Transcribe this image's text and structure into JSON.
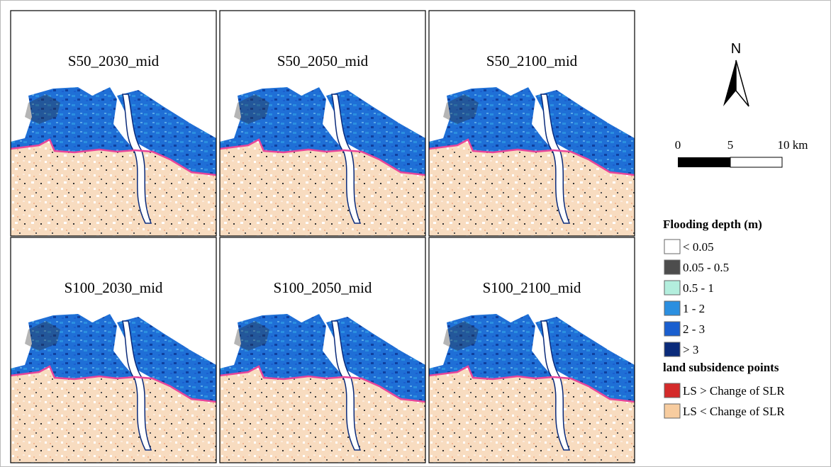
{
  "panels": [
    "S50_2030_mid",
    "S50_2050_mid",
    "S50_2100_mid",
    "S100_2030_mid",
    "S100_2050_mid",
    "S100_2100_mid"
  ],
  "north_arrow": "N",
  "scale_bar": {
    "labels": [
      "0",
      "5",
      "10 km"
    ]
  },
  "legend": {
    "flood_title": "Flooding depth (m)",
    "flood_items": [
      {
        "label": "< 0.05",
        "color": "#ffffff"
      },
      {
        "label": "0.05 - 0.5",
        "color": "#4d4d4d"
      },
      {
        "label": "0.5 - 1",
        "color": "#b3eedd"
      },
      {
        "label": "1 - 2",
        "color": "#2b8fe0"
      },
      {
        "label": "2 - 3",
        "color": "#1a5fcf"
      },
      {
        "label": "> 3",
        "color": "#0a2a7a"
      }
    ],
    "ls_title": "land subsidence points",
    "ls_items": [
      {
        "label": "LS > Change of SLR",
        "color": "#d42a2a"
      },
      {
        "label": "LS < Change of SLR",
        "color": "#f7cc9f"
      }
    ]
  }
}
